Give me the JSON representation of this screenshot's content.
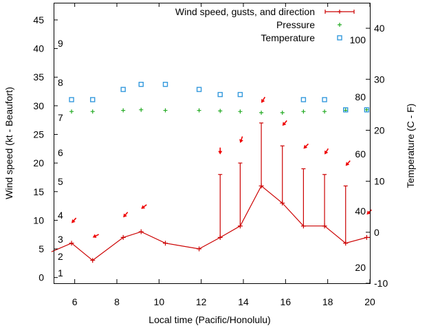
{
  "chart_data": {
    "type": "line",
    "title": "",
    "xlabel": "Local time (Pacific/Honolulu)",
    "ylabel": "Wind speed (kt - Beaufort)",
    "y2label": "Temperature (C - F)",
    "xlim": [
      5,
      20
    ],
    "ylim": [
      -1,
      48
    ],
    "y2lim": [
      -10,
      45
    ],
    "grid": false,
    "legend_position": "top-right",
    "x_ticks": [
      6,
      8,
      10,
      12,
      14,
      16,
      18,
      20
    ],
    "y_ticks": [
      0,
      5,
      10,
      15,
      20,
      25,
      30,
      35,
      40,
      45
    ],
    "y2_ticks": [
      -10,
      0,
      10,
      20,
      30,
      40
    ],
    "series": [
      {
        "name": "Wind speed, gusts, and direction",
        "color": "#cc0000",
        "x": [
          4.9,
          5.85,
          6.85,
          8.3,
          9.15,
          10.3,
          11.9,
          12.9,
          13.85,
          14.85,
          15.85,
          16.85,
          17.85,
          18.85,
          19.85,
          20
        ],
        "values": [
          4.5,
          6,
          3,
          7,
          8,
          6,
          5,
          7,
          9,
          16,
          13,
          9,
          9,
          6,
          7,
          7
        ],
        "gusts": [
          null,
          null,
          null,
          null,
          null,
          null,
          null,
          18,
          20,
          27,
          23,
          19,
          18,
          16,
          null,
          null
        ],
        "direction_markers": [
          {
            "x": 5.85,
            "y": 9.5,
            "dx": 7,
            "dy": -8
          },
          {
            "x": 6.85,
            "y": 7,
            "dx": 10,
            "dy": -5
          },
          {
            "x": 8.3,
            "y": 10.5,
            "dx": 6,
            "dy": -7
          },
          {
            "x": 9.15,
            "y": 12,
            "dx": 8,
            "dy": -6
          },
          {
            "x": 12.9,
            "y": 21.5,
            "dx": 0,
            "dy": -10
          },
          {
            "x": 13.85,
            "y": 23.5,
            "dx": 3,
            "dy": -9
          },
          {
            "x": 14.85,
            "y": 30.5,
            "dx": 5,
            "dy": -8
          },
          {
            "x": 15.85,
            "y": 26.5,
            "dx": 6,
            "dy": -7
          },
          {
            "x": 16.85,
            "y": 22.5,
            "dx": 7,
            "dy": -7
          },
          {
            "x": 17.85,
            "y": 21.5,
            "dx": 5,
            "dy": -8
          },
          {
            "x": 18.85,
            "y": 19.5,
            "dx": 6,
            "dy": -7
          },
          {
            "x": 19.85,
            "y": 11,
            "dx": 7,
            "dy": -7
          }
        ]
      },
      {
        "name": "Pressure",
        "color": "#22aa22",
        "x": [
          5.85,
          6.85,
          8.3,
          9.15,
          10.3,
          11.9,
          12.9,
          13.85,
          14.85,
          15.85,
          16.85,
          17.85,
          18.85,
          19.85
        ],
        "values": [
          29,
          29,
          29.2,
          29.3,
          29.2,
          29.2,
          29.1,
          29,
          28.8,
          28.8,
          29,
          29,
          29.2,
          29.3
        ]
      },
      {
        "name": "Temperature",
        "color": "#3399dd",
        "axis": "y2",
        "x": [
          5.85,
          6.85,
          8.3,
          9.15,
          10.3,
          11.9,
          12.9,
          13.85,
          16.85,
          17.85,
          18.85,
          19.85
        ],
        "values": [
          26,
          26,
          28,
          29,
          29,
          28,
          27,
          27,
          26,
          26,
          24,
          24
        ]
      }
    ],
    "annotations": {
      "beaufort": [
        "1",
        "2",
        "3",
        "4",
        "5",
        "6",
        "7",
        "8",
        "9"
      ],
      "fahrenheit": [
        "20",
        "40",
        "60",
        "80",
        "100"
      ]
    }
  }
}
